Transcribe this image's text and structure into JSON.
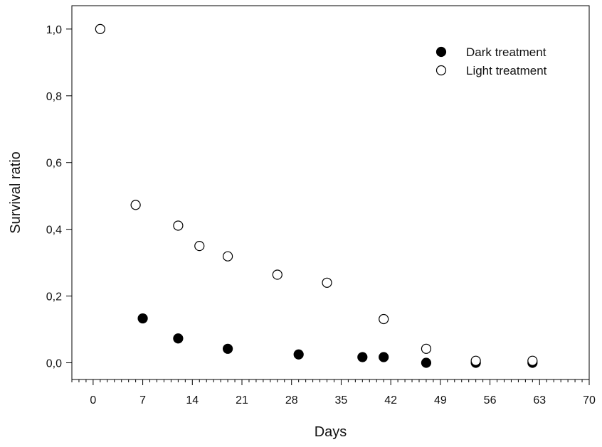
{
  "chart_data": {
    "type": "scatter",
    "xlabel": "Days",
    "ylabel": "Survival ratio",
    "xlim": [
      -3,
      70
    ],
    "ylim": [
      -0.05,
      1.07
    ],
    "xticks": [
      0,
      7,
      14,
      21,
      28,
      35,
      42,
      49,
      56,
      63,
      70
    ],
    "xtick_labels": [
      "0",
      "7",
      "14",
      "21",
      "28",
      "35",
      "42",
      "49",
      "56",
      "63",
      "70"
    ],
    "yticks": [
      0.0,
      0.2,
      0.4,
      0.6,
      0.8,
      1.0
    ],
    "ytick_labels": [
      "0,0",
      "0,2",
      "0,4",
      "0,6",
      "0,8",
      "1,0"
    ],
    "x_minor_step": 1,
    "grid": false,
    "legend_position": "top-right",
    "series": [
      {
        "name": "Dark treatment",
        "marker": "filled-circle",
        "color": "#000000",
        "x": [
          7,
          12,
          19,
          29,
          38,
          41,
          47,
          54,
          62
        ],
        "y": [
          0.133,
          0.073,
          0.042,
          0.025,
          0.017,
          0.017,
          0.0,
          0.0,
          0.0
        ]
      },
      {
        "name": "Light treatment",
        "marker": "open-circle",
        "color": "#000000",
        "x": [
          1,
          6,
          12,
          15,
          19,
          26,
          33,
          41,
          47,
          54,
          62
        ],
        "y": [
          1.0,
          0.473,
          0.411,
          0.35,
          0.319,
          0.264,
          0.24,
          0.131,
          0.042,
          0.006,
          0.006
        ]
      }
    ]
  }
}
